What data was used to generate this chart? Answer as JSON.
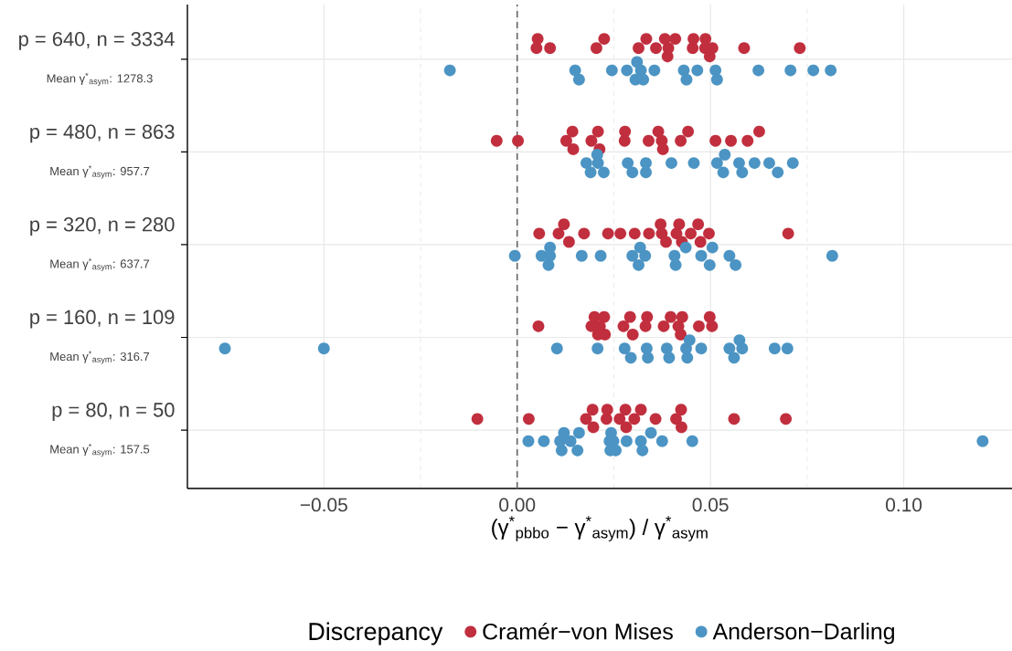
{
  "chart_data": {
    "type": "scatter",
    "orientation": "horizontal",
    "categories": [
      "p = 640, n = 3334",
      "p = 480, n = 863",
      "p = 320, n = 280",
      "p = 160, n = 109",
      "p = 80, n = 50"
    ],
    "annotations": [
      "Mean γ$^{*}$$_{asym}$: 1278.3",
      "Mean γ$^{*}$$_{asym}$: 957.7",
      "Mean γ$^{*}$$_{asym}$: 637.7",
      "Mean γ$^{*}$$_{asym}$: 316.7",
      "Mean γ$^{*}$$_{asym}$: 157.5"
    ],
    "xlabel": "(γ$^{*}$$_{pbbo}$ − γ$^{*}$$_{asym}$) / γ$^{*}$$_{asym}$",
    "legend_title": "Discrepancy",
    "xlim": [
      -0.0853,
      0.128
    ],
    "xticks": [
      {
        "value": -0.05,
        "label": "−0.05"
      },
      {
        "value": 0,
        "label": "0.00"
      },
      {
        "value": 0.05,
        "label": "0.05"
      },
      {
        "value": 0.1,
        "label": "0.10"
      }
    ],
    "grid": true,
    "legend": "bottom",
    "marker": "circle",
    "ref_lines": [
      {
        "axis": "x",
        "value": 0,
        "color": "#666666",
        "line_style": "dashed"
      }
    ],
    "series": [
      {
        "name": "Cramér−von Mises",
        "color": "#c12e3d",
        "x": [
          "p = 640, n = 3334",
          "p = 640, n = 3334",
          "p = 640, n = 3334",
          "p = 640, n = 3334",
          "p = 640, n = 3334",
          "p = 640, n = 3334",
          "p = 640, n = 3334",
          "p = 640, n = 3334",
          "p = 640, n = 3334",
          "p = 640, n = 3334",
          "p = 640, n = 3334",
          "p = 640, n = 3334",
          "p = 640, n = 3334",
          "p = 640, n = 3334",
          "p = 640, n = 3334",
          "p = 640, n = 3334",
          "p = 640, n = 3334",
          "p = 640, n = 3334",
          "p = 640, n = 3334",
          "p = 640, n = 3334",
          "p = 480, n = 863",
          "p = 480, n = 863",
          "p = 480, n = 863",
          "p = 480, n = 863",
          "p = 480, n = 863",
          "p = 480, n = 863",
          "p = 480, n = 863",
          "p = 480, n = 863",
          "p = 480, n = 863",
          "p = 480, n = 863",
          "p = 480, n = 863",
          "p = 480, n = 863",
          "p = 480, n = 863",
          "p = 480, n = 863",
          "p = 480, n = 863",
          "p = 480, n = 863",
          "p = 480, n = 863",
          "p = 480, n = 863",
          "p = 480, n = 863",
          "p = 480, n = 863",
          "p = 320, n = 280",
          "p = 320, n = 280",
          "p = 320, n = 280",
          "p = 320, n = 280",
          "p = 320, n = 280",
          "p = 320, n = 280",
          "p = 320, n = 280",
          "p = 320, n = 280",
          "p = 320, n = 280",
          "p = 320, n = 280",
          "p = 320, n = 280",
          "p = 320, n = 280",
          "p = 320, n = 280",
          "p = 320, n = 280",
          "p = 320, n = 280",
          "p = 320, n = 280",
          "p = 320, n = 280",
          "p = 320, n = 280",
          "p = 320, n = 280",
          "p = 320, n = 280",
          "p = 160, n = 109",
          "p = 160, n = 109",
          "p = 160, n = 109",
          "p = 160, n = 109",
          "p = 160, n = 109",
          "p = 160, n = 109",
          "p = 160, n = 109",
          "p = 160, n = 109",
          "p = 160, n = 109",
          "p = 160, n = 109",
          "p = 160, n = 109",
          "p = 160, n = 109",
          "p = 160, n = 109",
          "p = 160, n = 109",
          "p = 160, n = 109",
          "p = 160, n = 109",
          "p = 160, n = 109",
          "p = 160, n = 109",
          "p = 160, n = 109",
          "p = 160, n = 109",
          "p = 80, n = 50",
          "p = 80, n = 50",
          "p = 80, n = 50",
          "p = 80, n = 50",
          "p = 80, n = 50",
          "p = 80, n = 50",
          "p = 80, n = 50",
          "p = 80, n = 50",
          "p = 80, n = 50",
          "p = 80, n = 50",
          "p = 80, n = 50",
          "p = 80, n = 50",
          "p = 80, n = 50",
          "p = 80, n = 50",
          "p = 80, n = 50",
          "p = 80, n = 50",
          "p = 80, n = 50",
          "p = 80, n = 50"
        ],
        "values": [
          0.005,
          0.0053,
          0.0085,
          0.0205,
          0.0225,
          0.0314,
          0.0334,
          0.0359,
          0.0382,
          0.0389,
          0.0391,
          0.0409,
          0.0454,
          0.0456,
          0.0486,
          0.0487,
          0.0498,
          0.0505,
          0.0587,
          0.0731,
          -0.0053,
          0.0002,
          0.0143,
          0.0145,
          0.0127,
          0.0192,
          0.0213,
          0.0209,
          0.0279,
          0.0278,
          0.034,
          0.0365,
          0.0374,
          0.0377,
          0.0423,
          0.0442,
          0.0513,
          0.0553,
          0.0596,
          0.0626,
          0.0057,
          0.0107,
          0.0121,
          0.0134,
          0.0173,
          0.0235,
          0.0267,
          0.0304,
          0.0341,
          0.0371,
          0.0374,
          0.0385,
          0.0412,
          0.0419,
          0.0426,
          0.0449,
          0.0468,
          0.0474,
          0.0496,
          0.0701,
          0.0055,
          0.0192,
          0.02,
          0.0209,
          0.0214,
          0.0225,
          0.0227,
          0.0275,
          0.0292,
          0.0299,
          0.0332,
          0.0336,
          0.0379,
          0.0397,
          0.0417,
          0.0427,
          0.0423,
          0.047,
          0.0498,
          0.0504,
          -0.0103,
          0.003,
          0.0178,
          0.0197,
          0.0195,
          0.0231,
          0.0233,
          0.0265,
          0.028,
          0.0282,
          0.0303,
          0.032,
          0.0358,
          0.0411,
          0.0425,
          0.0424,
          0.0561,
          0.0695
        ]
      },
      {
        "name": "Anderson−Darling",
        "color": "#4b94c4",
        "x": [
          "p = 640, n = 3334",
          "p = 640, n = 3334",
          "p = 640, n = 3334",
          "p = 640, n = 3334",
          "p = 640, n = 3334",
          "p = 640, n = 3334",
          "p = 640, n = 3334",
          "p = 640, n = 3334",
          "p = 640, n = 3334",
          "p = 640, n = 3334",
          "p = 640, n = 3334",
          "p = 640, n = 3334",
          "p = 640, n = 3334",
          "p = 640, n = 3334",
          "p = 640, n = 3334",
          "p = 640, n = 3334",
          "p = 640, n = 3334",
          "p = 640, n = 3334",
          "p = 640, n = 3334",
          "p = 480, n = 863",
          "p = 480, n = 863",
          "p = 480, n = 863",
          "p = 480, n = 863",
          "p = 480, n = 863",
          "p = 480, n = 863",
          "p = 480, n = 863",
          "p = 480, n = 863",
          "p = 480, n = 863",
          "p = 480, n = 863",
          "p = 480, n = 863",
          "p = 480, n = 863",
          "p = 480, n = 863",
          "p = 480, n = 863",
          "p = 480, n = 863",
          "p = 480, n = 863",
          "p = 480, n = 863",
          "p = 480, n = 863",
          "p = 480, n = 863",
          "p = 480, n = 863",
          "p = 320, n = 280",
          "p = 320, n = 280",
          "p = 320, n = 280",
          "p = 320, n = 280",
          "p = 320, n = 280",
          "p = 320, n = 280",
          "p = 320, n = 280",
          "p = 320, n = 280",
          "p = 320, n = 280",
          "p = 320, n = 280",
          "p = 320, n = 280",
          "p = 320, n = 280",
          "p = 320, n = 280",
          "p = 320, n = 280",
          "p = 320, n = 280",
          "p = 320, n = 280",
          "p = 320, n = 280",
          "p = 320, n = 280",
          "p = 320, n = 280",
          "p = 320, n = 280",
          "p = 160, n = 109",
          "p = 160, n = 109",
          "p = 160, n = 109",
          "p = 160, n = 109",
          "p = 160, n = 109",
          "p = 160, n = 109",
          "p = 160, n = 109",
          "p = 160, n = 109",
          "p = 160, n = 109",
          "p = 160, n = 109",
          "p = 160, n = 109",
          "p = 160, n = 109",
          "p = 160, n = 109",
          "p = 160, n = 109",
          "p = 160, n = 109",
          "p = 160, n = 109",
          "p = 160, n = 109",
          "p = 160, n = 109",
          "p = 160, n = 109",
          "p = 160, n = 109",
          "p = 80, n = 50",
          "p = 80, n = 50",
          "p = 80, n = 50",
          "p = 80, n = 50",
          "p = 80, n = 50",
          "p = 80, n = 50",
          "p = 80, n = 50",
          "p = 80, n = 50",
          "p = 80, n = 50",
          "p = 80, n = 50",
          "p = 80, n = 50",
          "p = 80, n = 50",
          "p = 80, n = 50",
          "p = 80, n = 50",
          "p = 80, n = 50",
          "p = 80, n = 50",
          "p = 80, n = 50",
          "p = 80, n = 50",
          "p = 80, n = 50",
          "p = 80, n = 50"
        ],
        "values": [
          -0.0174,
          0.015,
          0.016,
          0.0245,
          0.0284,
          0.032,
          0.0306,
          0.031,
          0.0326,
          0.0355,
          0.0438,
          0.0466,
          0.0431,
          0.0513,
          0.0517,
          0.0624,
          0.0707,
          0.0766,
          0.0811,
          0.0179,
          0.019,
          0.0207,
          0.0209,
          0.0224,
          0.0286,
          0.0298,
          0.0333,
          0.0333,
          0.0399,
          0.0457,
          0.0517,
          0.0533,
          0.0537,
          0.0574,
          0.0582,
          0.0614,
          0.0652,
          0.0674,
          0.0713,
          -0.0006,
          0.0063,
          0.0081,
          0.0085,
          0.0085,
          0.0167,
          0.0216,
          0.0298,
          0.0314,
          0.0318,
          0.0331,
          0.0407,
          0.041,
          0.0436,
          0.0476,
          0.0498,
          0.0505,
          0.0549,
          0.0565,
          0.0815,
          -0.0756,
          -0.05,
          0.0103,
          0.0208,
          0.0278,
          0.0294,
          0.0335,
          0.0338,
          0.0387,
          0.0393,
          0.0437,
          0.044,
          0.0446,
          0.0476,
          0.0549,
          0.0561,
          0.0575,
          0.0582,
          0.0666,
          0.0699,
          0.0029,
          0.0069,
          0.0111,
          0.0121,
          0.0115,
          0.0156,
          0.016,
          0.0138,
          0.0241,
          0.0243,
          0.0239,
          0.0249,
          0.0255,
          0.0283,
          0.032,
          0.0324,
          0.0346,
          0.0375,
          0.0453,
          0.1204
        ]
      }
    ]
  }
}
